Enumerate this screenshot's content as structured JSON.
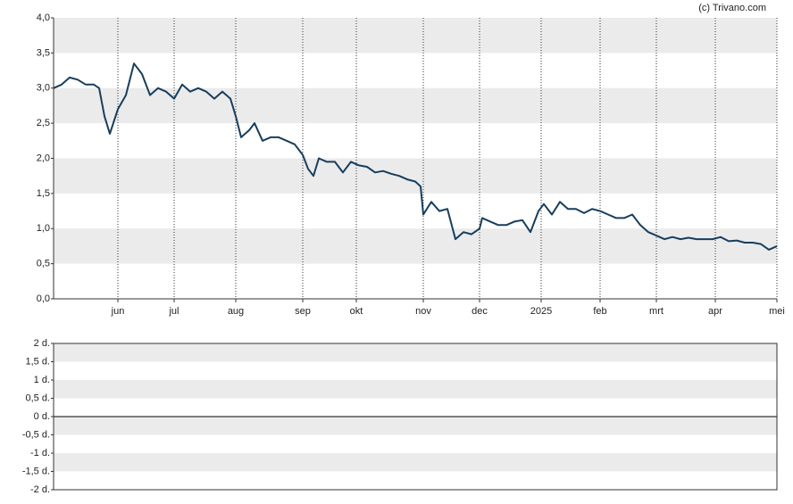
{
  "chart_data": [
    {
      "type": "line",
      "credit": "(c) Trivano.com",
      "x": [
        0,
        3,
        6,
        9,
        12,
        15,
        17,
        19,
        21,
        24,
        27,
        30,
        33,
        36,
        39,
        42,
        45,
        48,
        51,
        54,
        57,
        60,
        63,
        66,
        68,
        70,
        73,
        75,
        78,
        81,
        84,
        87,
        90,
        93,
        95,
        97,
        99,
        102,
        105,
        108,
        111,
        114,
        117,
        120,
        123,
        126,
        129,
        132,
        135,
        137,
        138,
        141,
        144,
        147,
        150,
        153,
        156,
        159,
        160,
        163,
        166,
        169,
        172,
        175,
        178,
        181,
        183,
        186,
        189,
        192,
        195,
        198,
        201,
        204,
        207,
        210,
        213,
        216,
        219,
        222,
        225,
        228,
        231,
        234,
        237,
        240,
        243,
        246,
        249,
        252,
        255,
        258,
        261,
        264,
        267,
        270
      ],
      "series": [
        {
          "color": "#173e5e",
          "values": [
            3.0,
            3.05,
            3.15,
            3.12,
            3.05,
            3.05,
            3.0,
            2.6,
            2.35,
            2.7,
            2.9,
            3.35,
            3.2,
            2.9,
            3.0,
            2.95,
            2.85,
            3.05,
            2.95,
            3.0,
            2.95,
            2.85,
            2.95,
            2.85,
            2.6,
            2.3,
            2.4,
            2.5,
            2.25,
            2.3,
            2.3,
            2.25,
            2.2,
            2.05,
            1.85,
            1.75,
            2.0,
            1.95,
            1.95,
            1.8,
            1.95,
            1.9,
            1.88,
            1.8,
            1.82,
            1.78,
            1.75,
            1.7,
            1.67,
            1.6,
            1.2,
            1.38,
            1.25,
            1.28,
            0.85,
            0.95,
            0.92,
            1.0,
            1.15,
            1.1,
            1.05,
            1.05,
            1.1,
            1.12,
            0.95,
            1.25,
            1.35,
            1.2,
            1.38,
            1.28,
            1.28,
            1.22,
            1.28,
            1.25,
            1.2,
            1.15,
            1.15,
            1.2,
            1.05,
            0.95,
            0.9,
            0.85,
            0.88,
            0.85,
            0.87,
            0.85,
            0.85,
            0.85,
            0.88,
            0.82,
            0.83,
            0.8,
            0.8,
            0.78,
            0.7,
            0.75
          ]
        }
      ],
      "xlim": [
        0,
        270
      ],
      "xticks": [
        {
          "value": 24,
          "label": "jun"
        },
        {
          "value": 45,
          "label": "jul"
        },
        {
          "value": 68,
          "label": "aug"
        },
        {
          "value": 93,
          "label": "sep"
        },
        {
          "value": 113,
          "label": "okt"
        },
        {
          "value": 138,
          "label": "nov"
        },
        {
          "value": 159,
          "label": "dec"
        },
        {
          "value": 182,
          "label": "2025"
        },
        {
          "value": 204,
          "label": "feb"
        },
        {
          "value": 225,
          "label": "mrt"
        },
        {
          "value": 247,
          "label": "apr"
        },
        {
          "value": 270,
          "label": "mei"
        }
      ],
      "ylim": [
        0,
        4
      ],
      "yticks": [
        {
          "value": 0,
          "label": "0,0"
        },
        {
          "value": 0.5,
          "label": "0,5"
        },
        {
          "value": 1,
          "label": "1,0"
        },
        {
          "value": 1.5,
          "label": "1,5"
        },
        {
          "value": 2,
          "label": "2,0"
        },
        {
          "value": 2.5,
          "label": "2,5"
        },
        {
          "value": 3,
          "label": "3,0"
        },
        {
          "value": 3.5,
          "label": "3,5"
        },
        {
          "value": 4,
          "label": "4,0"
        }
      ],
      "grid": true
    },
    {
      "type": "line",
      "series": [],
      "ylim": [
        -2,
        2
      ],
      "yticks": [
        {
          "value": -2,
          "label": "-2 d."
        },
        {
          "value": -1.5,
          "label": "-1,5 d."
        },
        {
          "value": -1,
          "label": "-1 d."
        },
        {
          "value": -0.5,
          "label": "-0,5 d."
        },
        {
          "value": 0,
          "label": "0 d."
        },
        {
          "value": 0.5,
          "label": "0,5 d."
        },
        {
          "value": 1,
          "label": "1 d."
        },
        {
          "value": 1.5,
          "label": "1,5 d."
        },
        {
          "value": 2,
          "label": "2 d."
        }
      ],
      "grid": true
    }
  ]
}
